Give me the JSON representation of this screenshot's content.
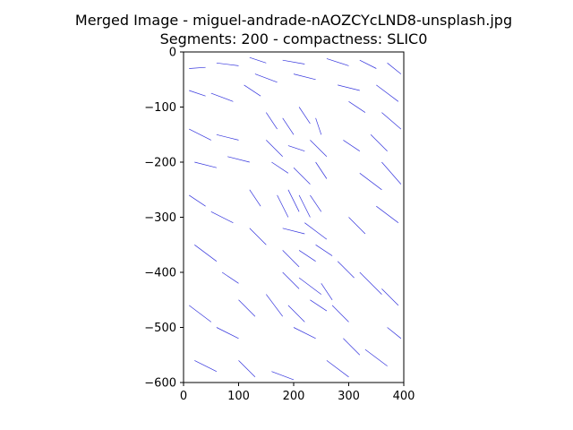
{
  "figure": {
    "title_line1": "Merged Image - miguel-andrade-nAOZCYcLND8-unsplash.jpg",
    "title_line2": "Segments: 200 - compactness: SLIC0"
  },
  "colors": {
    "segment_line": "#3333dd",
    "axes": "#000000",
    "background": "#ffffff"
  },
  "chart_data": {
    "type": "line",
    "title": "Merged Image - miguel-andrade-nAOZCYcLND8-unsplash.jpg",
    "subtitle": "Segments: 200 - compactness: SLIC0",
    "xlabel": "",
    "ylabel": "",
    "xlim": [
      0,
      400
    ],
    "ylim": [
      -600,
      0
    ],
    "grid": false,
    "x_ticks": [
      0,
      100,
      200,
      300,
      400
    ],
    "y_ticks": [
      0,
      -100,
      -200,
      -300,
      -400,
      -500,
      -600
    ],
    "x_tick_labels": [
      "0",
      "100",
      "200",
      "300",
      "400"
    ],
    "y_tick_labels": [
      "0",
      "−100",
      "−200",
      "−300",
      "−400",
      "−500",
      "−600"
    ],
    "segments": [
      [
        [
          10,
          -30
        ],
        [
          40,
          -28
        ]
      ],
      [
        [
          60,
          -20
        ],
        [
          100,
          -25
        ]
      ],
      [
        [
          120,
          -10
        ],
        [
          150,
          -20
        ]
      ],
      [
        [
          180,
          -15
        ],
        [
          220,
          -22
        ]
      ],
      [
        [
          260,
          -12
        ],
        [
          300,
          -25
        ]
      ],
      [
        [
          320,
          -15
        ],
        [
          350,
          -30
        ]
      ],
      [
        [
          370,
          -20
        ],
        [
          395,
          -40
        ]
      ],
      [
        [
          350,
          -60
        ],
        [
          390,
          -90
        ]
      ],
      [
        [
          10,
          -70
        ],
        [
          40,
          -80
        ]
      ],
      [
        [
          50,
          -75
        ],
        [
          90,
          -90
        ]
      ],
      [
        [
          110,
          -60
        ],
        [
          140,
          -80
        ]
      ],
      [
        [
          130,
          -40
        ],
        [
          170,
          -55
        ]
      ],
      [
        [
          200,
          -40
        ],
        [
          240,
          -50
        ]
      ],
      [
        [
          280,
          -60
        ],
        [
          320,
          -70
        ]
      ],
      [
        [
          300,
          -90
        ],
        [
          330,
          -110
        ]
      ],
      [
        [
          360,
          -110
        ],
        [
          395,
          -140
        ]
      ],
      [
        [
          10,
          -140
        ],
        [
          50,
          -160
        ]
      ],
      [
        [
          60,
          -150
        ],
        [
          100,
          -160
        ]
      ],
      [
        [
          20,
          -200
        ],
        [
          60,
          -210
        ]
      ],
      [
        [
          80,
          -190
        ],
        [
          120,
          -200
        ]
      ],
      [
        [
          150,
          -110
        ],
        [
          170,
          -140
        ]
      ],
      [
        [
          180,
          -120
        ],
        [
          200,
          -150
        ]
      ],
      [
        [
          210,
          -100
        ],
        [
          230,
          -130
        ]
      ],
      [
        [
          240,
          -120
        ],
        [
          250,
          -150
        ]
      ],
      [
        [
          150,
          -160
        ],
        [
          180,
          -190
        ]
      ],
      [
        [
          190,
          -170
        ],
        [
          220,
          -180
        ]
      ],
      [
        [
          230,
          -160
        ],
        [
          260,
          -190
        ]
      ],
      [
        [
          160,
          -200
        ],
        [
          190,
          -220
        ]
      ],
      [
        [
          200,
          -210
        ],
        [
          230,
          -240
        ]
      ],
      [
        [
          240,
          -200
        ],
        [
          260,
          -230
        ]
      ],
      [
        [
          170,
          -260
        ],
        [
          190,
          -300
        ]
      ],
      [
        [
          190,
          -250
        ],
        [
          210,
          -290
        ]
      ],
      [
        [
          210,
          -260
        ],
        [
          230,
          -300
        ]
      ],
      [
        [
          230,
          -260
        ],
        [
          250,
          -290
        ]
      ],
      [
        [
          180,
          -320
        ],
        [
          220,
          -330
        ]
      ],
      [
        [
          220,
          -310
        ],
        [
          260,
          -340
        ]
      ],
      [
        [
          180,
          -360
        ],
        [
          210,
          -390
        ]
      ],
      [
        [
          210,
          -360
        ],
        [
          240,
          -380
        ]
      ],
      [
        [
          240,
          -350
        ],
        [
          270,
          -370
        ]
      ],
      [
        [
          180,
          -400
        ],
        [
          210,
          -430
        ]
      ],
      [
        [
          210,
          -410
        ],
        [
          250,
          -440
        ]
      ],
      [
        [
          250,
          -420
        ],
        [
          270,
          -450
        ]
      ],
      [
        [
          150,
          -440
        ],
        [
          180,
          -480
        ]
      ],
      [
        [
          190,
          -460
        ],
        [
          220,
          -490
        ]
      ],
      [
        [
          230,
          -450
        ],
        [
          260,
          -470
        ]
      ],
      [
        [
          200,
          -500
        ],
        [
          240,
          -520
        ]
      ],
      [
        [
          10,
          -260
        ],
        [
          40,
          -280
        ]
      ],
      [
        [
          50,
          -290
        ],
        [
          90,
          -310
        ]
      ],
      [
        [
          20,
          -350
        ],
        [
          60,
          -380
        ]
      ],
      [
        [
          70,
          -400
        ],
        [
          100,
          -420
        ]
      ],
      [
        [
          10,
          -460
        ],
        [
          50,
          -490
        ]
      ],
      [
        [
          60,
          -500
        ],
        [
          100,
          -520
        ]
      ],
      [
        [
          20,
          -560
        ],
        [
          60,
          -580
        ]
      ],
      [
        [
          100,
          -560
        ],
        [
          130,
          -590
        ]
      ],
      [
        [
          160,
          -580
        ],
        [
          200,
          -595
        ]
      ],
      [
        [
          260,
          -560
        ],
        [
          300,
          -590
        ]
      ],
      [
        [
          330,
          -540
        ],
        [
          370,
          -570
        ]
      ],
      [
        [
          370,
          -500
        ],
        [
          395,
          -520
        ]
      ],
      [
        [
          320,
          -400
        ],
        [
          360,
          -440
        ]
      ],
      [
        [
          360,
          -430
        ],
        [
          390,
          -460
        ]
      ],
      [
        [
          300,
          -300
        ],
        [
          330,
          -330
        ]
      ],
      [
        [
          350,
          -280
        ],
        [
          390,
          -310
        ]
      ],
      [
        [
          320,
          -220
        ],
        [
          360,
          -250
        ]
      ],
      [
        [
          360,
          -200
        ],
        [
          395,
          -240
        ]
      ],
      [
        [
          290,
          -160
        ],
        [
          320,
          -180
        ]
      ],
      [
        [
          340,
          -150
        ],
        [
          370,
          -180
        ]
      ],
      [
        [
          120,
          -250
        ],
        [
          140,
          -280
        ]
      ],
      [
        [
          120,
          -320
        ],
        [
          150,
          -350
        ]
      ],
      [
        [
          100,
          -450
        ],
        [
          130,
          -480
        ]
      ],
      [
        [
          270,
          -460
        ],
        [
          300,
          -490
        ]
      ],
      [
        [
          280,
          -380
        ],
        [
          310,
          -410
        ]
      ],
      [
        [
          290,
          -520
        ],
        [
          320,
          -550
        ]
      ]
    ]
  }
}
